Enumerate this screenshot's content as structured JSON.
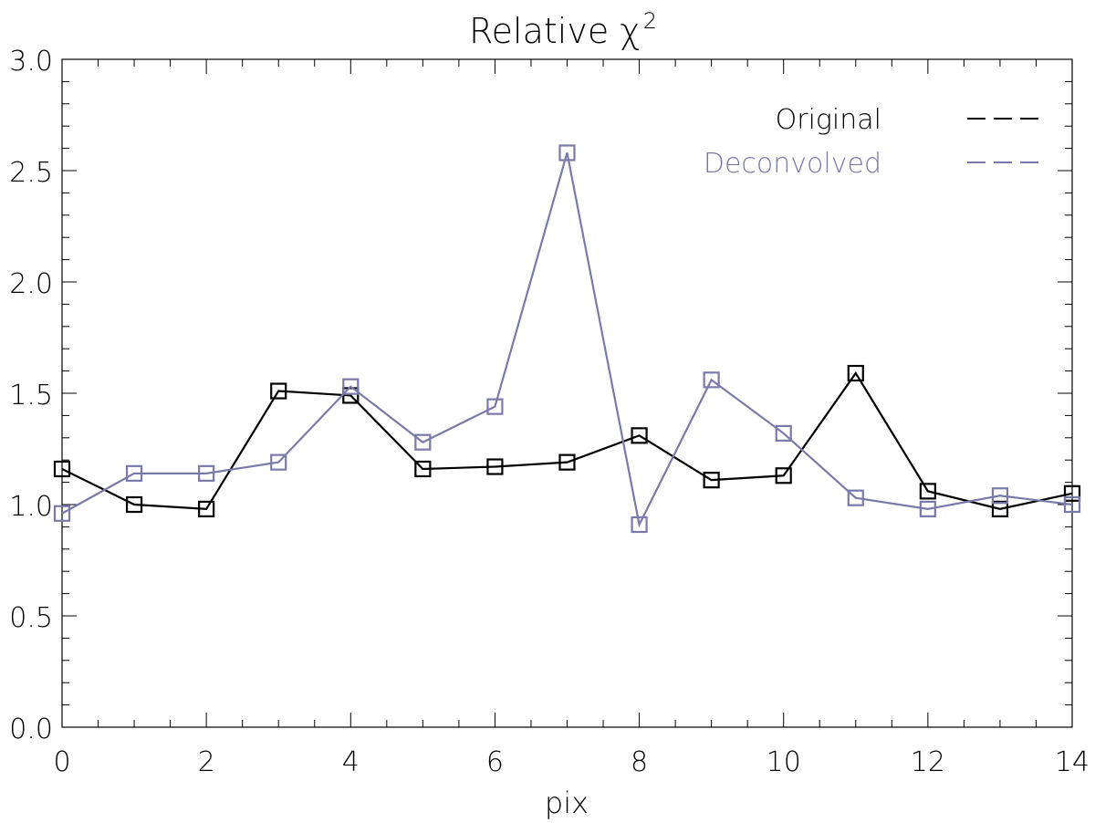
{
  "chart_data": {
    "type": "line",
    "title": "Relative χ",
    "title_superscript": "2",
    "xlabel": "pix",
    "ylabel": "",
    "xlim": [
      0,
      14
    ],
    "ylim": [
      0.0,
      3.0
    ],
    "x_ticks": [
      "0",
      "2",
      "4",
      "6",
      "8",
      "10",
      "12",
      "14"
    ],
    "y_ticks": [
      "0.0",
      "0.5",
      "1.0",
      "1.5",
      "2.0",
      "2.5",
      "3.0"
    ],
    "grid": false,
    "legend_position": "top-right",
    "marker": "square",
    "x": [
      0,
      1,
      2,
      3,
      4,
      5,
      6,
      7,
      8,
      9,
      10,
      11,
      12,
      13,
      14
    ],
    "series": [
      {
        "name": "Original",
        "color": "#000000",
        "values": [
          1.16,
          1.0,
          0.98,
          1.51,
          1.49,
          1.16,
          1.17,
          1.19,
          1.31,
          1.11,
          1.13,
          1.59,
          1.06,
          0.98,
          1.05
        ]
      },
      {
        "name": "Deconvolved",
        "color": "#7a7aaa",
        "values": [
          0.96,
          1.14,
          1.14,
          1.19,
          1.53,
          1.28,
          1.44,
          2.58,
          0.91,
          1.56,
          1.32,
          1.03,
          0.98,
          1.04,
          1.0
        ]
      }
    ]
  }
}
